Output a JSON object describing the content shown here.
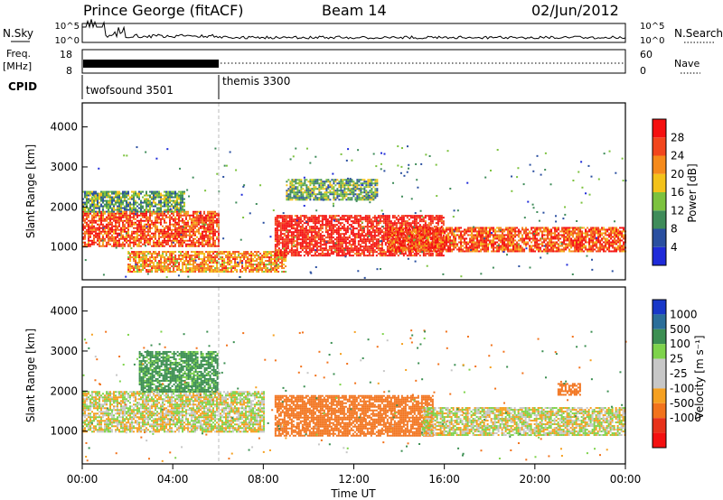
{
  "header": {
    "station": "Prince George (fitACF)",
    "beam": "Beam 14",
    "date": "02/Jun/2012"
  },
  "strip_labels": {
    "nsky": "N.Sky",
    "freq_line1": "Freq.",
    "freq_line2": "[MHz]",
    "cpid": "CPID",
    "nsearch": "N.Search",
    "nave": "Nave"
  },
  "strip_ticks": {
    "nsky_left": [
      "10^5",
      "10^0"
    ],
    "nsky_right": [
      "10^5",
      "10^0"
    ],
    "freq_left": [
      "18",
      "8"
    ],
    "nave_right": [
      "60",
      "0"
    ]
  },
  "cpid_modes": [
    "twofsound 3501",
    "themis 3300"
  ],
  "time_axis": {
    "label": "Time UT",
    "ticks": [
      "00:00",
      "04:00",
      "08:00",
      "12:00",
      "16:00",
      "20:00",
      "00:00"
    ]
  },
  "colors": {
    "power": [
      "#1f2bd9",
      "#2a4fa0",
      "#3f8c5a",
      "#7cc23e",
      "#f3c21a",
      "#f58a1b",
      "#f2461d",
      "#f51010"
    ],
    "velocity": [
      "#1838c8",
      "#2b6e9a",
      "#3c8f52",
      "#7ed34b",
      "#c7c7c7",
      "#c7c7c7",
      "#f5a020",
      "#f2731c",
      "#e8321a",
      "#f41010"
    ]
  },
  "chart_data": [
    {
      "type": "heatmap",
      "title": "",
      "xlabel": "Time UT",
      "ylabel": "Slant Range [km]",
      "x_range": [
        "00:00",
        "24:00"
      ],
      "ylim": [
        180,
        4600
      ],
      "y_ticks": [
        "1000",
        "2000",
        "3000",
        "4000"
      ],
      "colorbar": {
        "label": "Power [dB]",
        "range": [
          0,
          32
        ],
        "ticks": [
          "4",
          "8",
          "12",
          "16",
          "20",
          "24",
          "28"
        ]
      },
      "echo_regions": [
        {
          "t_start": 0.0,
          "t_end": 6.0,
          "range_low_km": 1000,
          "range_high_km": 1900,
          "power_db": 26
        },
        {
          "t_start": 0.0,
          "t_end": 4.5,
          "range_low_km": 1900,
          "range_high_km": 2400,
          "power_db": 12
        },
        {
          "t_start": 2.0,
          "t_end": 9.0,
          "range_low_km": 400,
          "range_high_km": 900,
          "power_db": 22
        },
        {
          "t_start": 8.5,
          "t_end": 16.0,
          "range_low_km": 800,
          "range_high_km": 1800,
          "power_db": 30
        },
        {
          "t_start": 13.5,
          "t_end": 24.0,
          "range_low_km": 900,
          "range_high_km": 1500,
          "power_db": 26
        },
        {
          "t_start": 9.0,
          "t_end": 13.0,
          "range_low_km": 2200,
          "range_high_km": 2700,
          "power_db": 12
        }
      ]
    },
    {
      "type": "heatmap",
      "title": "",
      "xlabel": "Time UT",
      "ylabel": "Slant Range [km]",
      "x_range": [
        "00:00",
        "24:00"
      ],
      "ylim": [
        180,
        4600
      ],
      "y_ticks": [
        "1000",
        "2000",
        "3000",
        "4000"
      ],
      "colorbar": {
        "label": "Velocity [m s⁻¹]",
        "ticks": [
          "1000",
          "500",
          "100",
          "25",
          "-25",
          "-100",
          "-500",
          "-1000"
        ]
      },
      "echo_regions": [
        {
          "t_start": 0.0,
          "t_end": 8.0,
          "range_low_km": 1000,
          "range_high_km": 2000,
          "velocity_ms": 0
        },
        {
          "t_start": 2.5,
          "t_end": 6.0,
          "range_low_km": 2000,
          "range_high_km": 3000,
          "velocity_ms": 150
        },
        {
          "t_start": 8.5,
          "t_end": 15.5,
          "range_low_km": 900,
          "range_high_km": 1900,
          "velocity_ms": -200
        },
        {
          "t_start": 15.0,
          "t_end": 24.0,
          "range_low_km": 900,
          "range_high_km": 1600,
          "velocity_ms": 0
        },
        {
          "t_start": 21.0,
          "t_end": 22.0,
          "range_low_km": 1900,
          "range_high_km": 2200,
          "velocity_ms": -300
        }
      ]
    }
  ]
}
